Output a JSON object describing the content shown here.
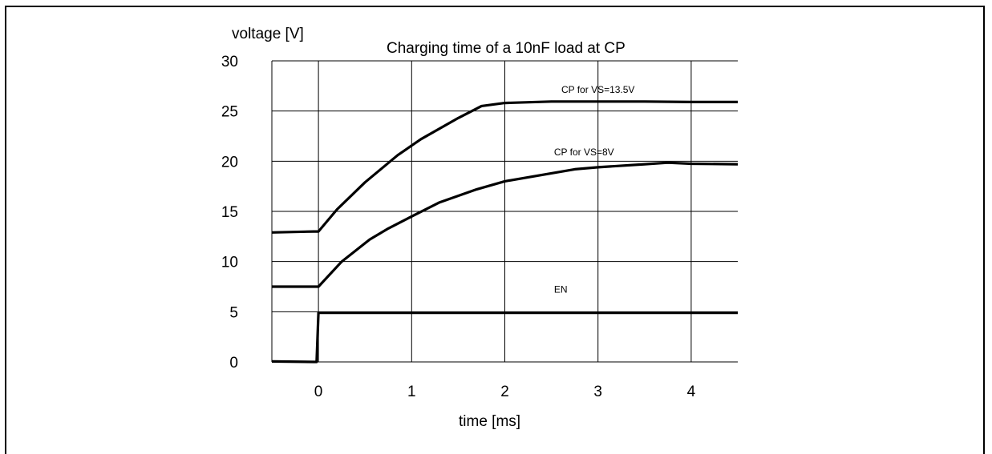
{
  "chart_data": {
    "type": "line",
    "title": "Charging time of a 10nF load at CP",
    "xlabel": "time [ms]",
    "ylabel": "voltage [V]",
    "xlim": [
      -0.5,
      4.5
    ],
    "ylim": [
      0,
      30
    ],
    "xticks": [
      0,
      1,
      2,
      3,
      4
    ],
    "yticks": [
      0,
      5,
      10,
      15,
      20,
      25,
      30
    ],
    "x_tick_labels": [
      "0",
      "1",
      "2",
      "3",
      "4"
    ],
    "y_tick_labels": [
      "0",
      "5",
      "10",
      "15",
      "20",
      "25",
      "30"
    ],
    "grid": true,
    "series": [
      {
        "name": "CP for VS=13.5V",
        "points": [
          [
            -0.5,
            12.9
          ],
          [
            -0.05,
            13.0
          ],
          [
            0.0,
            13.0
          ],
          [
            0.2,
            15.2
          ],
          [
            0.5,
            17.9
          ],
          [
            0.85,
            20.6
          ],
          [
            1.1,
            22.2
          ],
          [
            1.5,
            24.3
          ],
          [
            1.75,
            25.5
          ],
          [
            2.0,
            25.8
          ],
          [
            2.5,
            25.95
          ],
          [
            3.0,
            25.95
          ],
          [
            3.5,
            25.95
          ],
          [
            4.0,
            25.9
          ],
          [
            4.5,
            25.9
          ]
        ]
      },
      {
        "name": "CP for VS=8V",
        "points": [
          [
            -0.5,
            7.5
          ],
          [
            0.0,
            7.5
          ],
          [
            0.25,
            10.0
          ],
          [
            0.55,
            12.2
          ],
          [
            0.75,
            13.3
          ],
          [
            1.0,
            14.5
          ],
          [
            1.3,
            15.9
          ],
          [
            1.7,
            17.2
          ],
          [
            2.0,
            18.0
          ],
          [
            2.5,
            18.8
          ],
          [
            2.75,
            19.2
          ],
          [
            3.0,
            19.4
          ],
          [
            3.5,
            19.7
          ],
          [
            3.75,
            19.85
          ],
          [
            4.0,
            19.75
          ],
          [
            4.5,
            19.7
          ]
        ]
      },
      {
        "name": "EN",
        "points": [
          [
            -0.5,
            0.05
          ],
          [
            -0.05,
            0.0
          ],
          [
            -0.02,
            0.0
          ],
          [
            0.0,
            4.9
          ],
          [
            0.5,
            4.9
          ],
          [
            1.0,
            4.9
          ],
          [
            2.0,
            4.9
          ],
          [
            3.0,
            4.9
          ],
          [
            4.0,
            4.9
          ],
          [
            4.5,
            4.9
          ]
        ]
      }
    ]
  }
}
